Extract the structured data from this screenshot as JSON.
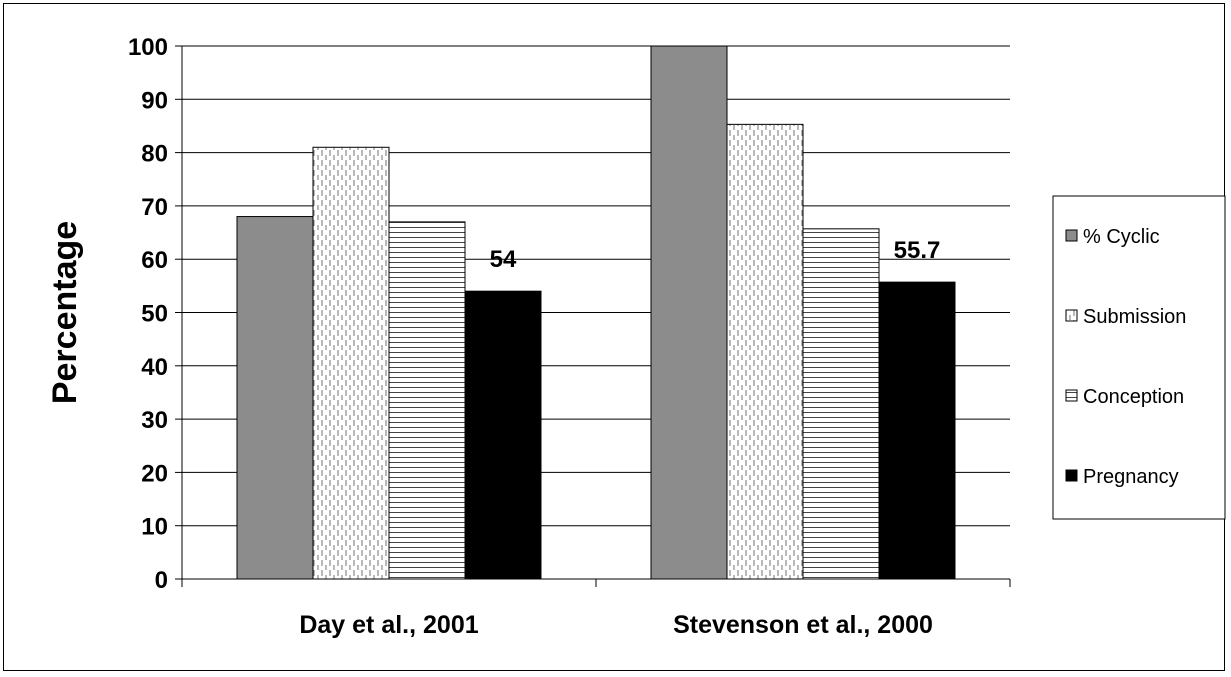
{
  "chart_data": {
    "type": "bar",
    "title": "",
    "xlabel": "",
    "ylabel": "Percentage",
    "ylim": [
      0,
      100
    ],
    "yticks": [
      0,
      10,
      20,
      30,
      40,
      50,
      60,
      70,
      80,
      90,
      100
    ],
    "grid": "horizontal",
    "legend_position": "right",
    "categories": [
      "Day et al., 2001",
      "Stevenson et al., 2000"
    ],
    "series": [
      {
        "name": "% Cyclic",
        "values": [
          68,
          100
        ],
        "pattern": "solid-gray",
        "color": "#8c8c8c"
      },
      {
        "name": "Submission",
        "values": [
          81,
          85.3
        ],
        "pattern": "vertical-dashes",
        "color": "#ffffff"
      },
      {
        "name": "Conception",
        "values": [
          67,
          65.7
        ],
        "pattern": "horizontal-lines",
        "color": "#ffffff"
      },
      {
        "name": "Pregnancy",
        "values": [
          54,
          55.7
        ],
        "pattern": "solid-black",
        "color": "#000000"
      }
    ],
    "data_labels": [
      {
        "series": "Pregnancy",
        "category": "Day et al., 2001",
        "text": "54"
      },
      {
        "series": "Pregnancy",
        "category": "Stevenson et al., 2000",
        "text": "55.7"
      }
    ]
  }
}
